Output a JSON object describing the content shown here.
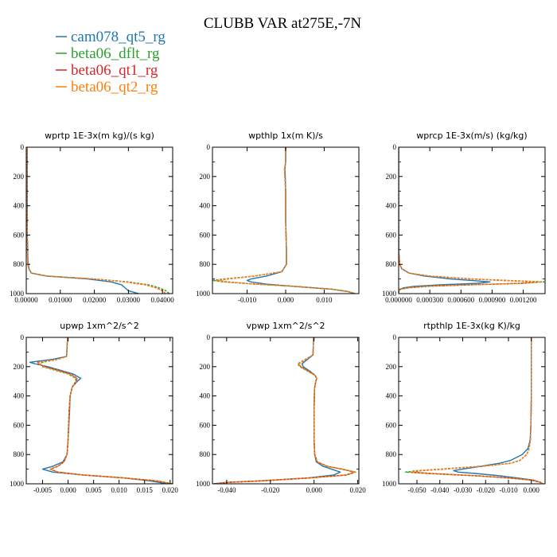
{
  "figure": {
    "title": "CLUBB VAR at275E,-7N",
    "legend": [
      {
        "name": "cam078_qt5_rg",
        "color": "#1f77b4"
      },
      {
        "name": "beta06_dflt_rg",
        "color": "#2ca02c"
      },
      {
        "name": "beta06_qt1_rg",
        "color": "#d62728"
      },
      {
        "name": "beta06_qt2_rg",
        "color": "#ff7f0e"
      }
    ]
  },
  "chart_data": [
    {
      "type": "line",
      "title": "wprtp  1E-3x(m kg)/(s kg)",
      "xlim": [
        0,
        0.043
      ],
      "ylim": [
        1000,
        0
      ],
      "xticks": [
        0,
        0.01,
        0.02,
        0.03,
        0.04
      ],
      "xtick_labels": [
        "0.00000",
        "0.01000",
        "0.02000",
        "0.03000",
        "0.04000"
      ],
      "yticks": [
        0,
        200,
        400,
        600,
        800,
        1000
      ],
      "ytick_labels": [
        "0",
        "200",
        "400",
        "600",
        "800",
        "1000"
      ],
      "y": [
        0,
        200,
        400,
        600,
        780,
        830,
        860,
        880,
        900,
        920,
        940,
        960,
        980,
        1000
      ],
      "series": [
        {
          "name": "cam078_qt5_rg",
          "x": [
            0.0003,
            0.0003,
            0.0003,
            0.0003,
            0.0005,
            0.0008,
            0.0015,
            0.006,
            0.018,
            0.025,
            0.028,
            0.029,
            0.03,
            0.033
          ]
        },
        {
          "name": "beta06_dflt_rg",
          "x": [
            0.0002,
            0.0002,
            0.0002,
            0.0003,
            0.0004,
            0.0007,
            0.0015,
            0.006,
            0.02,
            0.03,
            0.036,
            0.039,
            0.041,
            0.042
          ]
        },
        {
          "name": "beta06_qt1_rg",
          "x": [
            0.0002,
            0.0002,
            0.0002,
            0.0003,
            0.0004,
            0.0007,
            0.0015,
            0.006,
            0.02,
            0.029,
            0.035,
            0.038,
            0.04,
            0.041
          ]
        },
        {
          "name": "beta06_qt2_rg",
          "x": [
            0.0002,
            0.0002,
            0.0002,
            0.0003,
            0.0004,
            0.0007,
            0.0015,
            0.006,
            0.02,
            0.029,
            0.035,
            0.038,
            0.04,
            0.041
          ]
        }
      ]
    },
    {
      "type": "line",
      "title": "wpthlp  1x(m K)/s",
      "xlim": [
        -0.019,
        0.019
      ],
      "ylim": [
        1000,
        0
      ],
      "xticks": [
        -0.01,
        0,
        0.01
      ],
      "xtick_labels": [
        "-0.010",
        "0.000",
        "0.010"
      ],
      "yticks": [
        0,
        200,
        400,
        600,
        800,
        1000
      ],
      "ytick_labels": [
        "0",
        "200",
        "400",
        "600",
        "800",
        "1000"
      ],
      "y": [
        0,
        100,
        150,
        200,
        300,
        500,
        700,
        800,
        850,
        880,
        900,
        910,
        920,
        935,
        950,
        970,
        985,
        1000
      ],
      "series": [
        {
          "name": "cam078_qt5_rg",
          "x": [
            0.0,
            0.0,
            -0.0002,
            -0.0001,
            0.0,
            0.0,
            0.0002,
            0.0002,
            -0.001,
            -0.005,
            -0.009,
            -0.01,
            -0.009,
            -0.005,
            0.002,
            0.012,
            0.016,
            0.018
          ]
        },
        {
          "name": "beta06_dflt_rg",
          "x": [
            0.0,
            0.0,
            -0.0003,
            -0.0002,
            0.0,
            0.0,
            0.0002,
            0.0002,
            -0.001,
            -0.008,
            -0.016,
            -0.019,
            -0.016,
            -0.008,
            0.002,
            0.012,
            0.016,
            0.018
          ]
        },
        {
          "name": "beta06_qt1_rg",
          "x": [
            0.0,
            0.0,
            -0.0003,
            -0.0002,
            0.0,
            0.0,
            0.0002,
            0.0002,
            -0.001,
            -0.008,
            -0.015,
            -0.018,
            -0.015,
            -0.008,
            0.002,
            0.012,
            0.016,
            0.018
          ]
        },
        {
          "name": "beta06_qt2_rg",
          "x": [
            0.0,
            0.0,
            -0.0003,
            -0.0002,
            0.0,
            0.0,
            0.0002,
            0.0002,
            -0.001,
            -0.008,
            -0.015,
            -0.018,
            -0.015,
            -0.008,
            0.002,
            0.012,
            0.016,
            0.018
          ]
        }
      ]
    },
    {
      "type": "line",
      "title": "wprcp  1E-3x(m/s) (kg/kg)",
      "xlim": [
        0,
        0.00141
      ],
      "ylim": [
        1000,
        0
      ],
      "xticks": [
        0,
        0.0003,
        0.0006,
        0.0009,
        0.0012
      ],
      "xtick_labels": [
        "0.000000",
        "0.000300",
        "0.000600",
        "0.000900",
        "0.001200"
      ],
      "yticks": [
        0,
        200,
        400,
        600,
        800,
        1000
      ],
      "ytick_labels": [
        "0",
        "200",
        "400",
        "600",
        "800",
        "1000"
      ],
      "y": [
        0,
        700,
        800,
        830,
        860,
        880,
        900,
        910,
        920,
        930,
        940,
        950,
        960,
        970,
        980,
        1000
      ],
      "series": [
        {
          "name": "cam078_qt5_rg",
          "x": [
            0,
            0,
            1e-05,
            3e-05,
            0.0001,
            0.00025,
            0.0005,
            0.0007,
            0.00088,
            0.00075,
            0.0004,
            0.00015,
            5e-05,
            1e-05,
            0,
            0
          ]
        },
        {
          "name": "beta06_dflt_rg",
          "x": [
            0,
            0,
            1e-05,
            3e-05,
            0.0001,
            0.0003,
            0.0007,
            0.00105,
            0.0014,
            0.0012,
            0.0007,
            0.0003,
            0.0001,
            2e-05,
            0,
            0
          ]
        },
        {
          "name": "beta06_qt1_rg",
          "x": [
            0,
            0,
            1e-05,
            3e-05,
            0.0001,
            0.0003,
            0.0007,
            0.001,
            0.00135,
            0.00115,
            0.00065,
            0.00025,
            8e-05,
            2e-05,
            0,
            0
          ]
        },
        {
          "name": "beta06_qt2_rg",
          "x": [
            0,
            0,
            1e-05,
            3e-05,
            0.0001,
            0.0003,
            0.0007,
            0.00102,
            0.00137,
            0.00117,
            0.00067,
            0.00027,
            9e-05,
            2e-05,
            0,
            0
          ]
        }
      ]
    },
    {
      "type": "line",
      "title": "upwp   1xm^2/s^2",
      "xlim": [
        -0.0082,
        0.0205
      ],
      "ylim": [
        1000,
        0
      ],
      "xticks": [
        -0.005,
        0,
        0.005,
        0.01,
        0.015,
        0.02
      ],
      "xtick_labels": [
        "-0.005",
        "0.000",
        "0.005",
        "0.010",
        "0.015",
        "0.020"
      ],
      "yticks": [
        0,
        200,
        400,
        600,
        800,
        1000
      ],
      "ytick_labels": [
        "0",
        "200",
        "400",
        "600",
        "800",
        "1000"
      ],
      "y": [
        0,
        130,
        150,
        170,
        180,
        200,
        220,
        250,
        280,
        300,
        340,
        400,
        500,
        700,
        800,
        850,
        880,
        900,
        920,
        940,
        960,
        980,
        1000
      ],
      "series": [
        {
          "name": "cam078_qt5_rg",
          "x": [
            -0.0001,
            -0.0003,
            -0.003,
            -0.0075,
            -0.0065,
            -0.004,
            -0.002,
            0.001,
            0.0025,
            0.0018,
            0.0008,
            0.0004,
            0.0003,
            0.0,
            -0.0002,
            -0.001,
            -0.003,
            -0.005,
            -0.003,
            0.003,
            0.011,
            0.016,
            0.0195
          ]
        },
        {
          "name": "beta06_dflt_rg",
          "x": [
            -0.0001,
            -0.0003,
            -0.002,
            -0.005,
            -0.0055,
            -0.005,
            -0.003,
            0.0,
            0.0015,
            0.0015,
            0.0008,
            0.0004,
            0.0002,
            0.0,
            -0.0002,
            -0.0008,
            -0.002,
            -0.0035,
            -0.002,
            0.003,
            0.011,
            0.0175,
            0.0205
          ]
        },
        {
          "name": "beta06_qt1_rg",
          "x": [
            -0.0001,
            -0.0003,
            -0.0022,
            -0.006,
            -0.006,
            -0.0045,
            -0.0025,
            0.0005,
            0.0018,
            0.0016,
            0.0008,
            0.0004,
            0.0002,
            0.0,
            -0.0002,
            -0.0008,
            -0.002,
            -0.0035,
            -0.002,
            0.003,
            0.011,
            0.0172,
            0.0202
          ]
        },
        {
          "name": "beta06_qt2_rg",
          "x": [
            -0.0001,
            -0.0003,
            -0.0021,
            -0.0058,
            -0.0058,
            -0.0047,
            -0.0027,
            0.0003,
            0.0017,
            0.0016,
            0.0008,
            0.0004,
            0.0002,
            0.0,
            -0.0002,
            -0.0008,
            -0.002,
            -0.0035,
            -0.002,
            0.003,
            0.011,
            0.0173,
            0.0203
          ]
        }
      ]
    },
    {
      "type": "line",
      "title": "vpwp   1xm^2/s^2",
      "xlim": [
        -0.0465,
        0.0205
      ],
      "ylim": [
        1000,
        0
      ],
      "xticks": [
        -0.04,
        -0.02,
        0,
        0.02
      ],
      "xtick_labels": [
        "-0.040",
        "-0.020",
        "0.000",
        "0.020"
      ],
      "yticks": [
        0,
        200,
        400,
        600,
        800,
        1000
      ],
      "ytick_labels": [
        "0",
        "200",
        "400",
        "600",
        "800",
        "1000"
      ],
      "y": [
        0,
        120,
        150,
        180,
        200,
        230,
        260,
        280,
        300,
        350,
        500,
        700,
        800,
        850,
        880,
        900,
        920,
        940,
        960,
        980,
        990,
        1000
      ],
      "series": [
        {
          "name": "cam078_qt5_rg",
          "x": [
            -0.0002,
            -0.0005,
            -0.003,
            -0.0055,
            -0.005,
            -0.002,
            0.0005,
            0.0012,
            0.0008,
            0.0002,
            0.0,
            0.0,
            0.0003,
            0.001,
            0.004,
            0.008,
            0.012,
            0.009,
            -0.003,
            -0.025,
            -0.04,
            -0.046
          ]
        },
        {
          "name": "beta06_dflt_rg",
          "x": [
            -0.0002,
            -0.0005,
            -0.004,
            -0.0075,
            -0.0065,
            -0.003,
            0.0005,
            0.0012,
            0.0008,
            0.0002,
            0.0,
            0.0,
            0.0003,
            0.0015,
            0.006,
            0.013,
            0.019,
            0.015,
            -0.002,
            -0.024,
            -0.039,
            -0.045
          ]
        },
        {
          "name": "beta06_qt1_rg",
          "x": [
            -0.0002,
            -0.0005,
            -0.0035,
            -0.007,
            -0.006,
            -0.0025,
            0.0005,
            0.0012,
            0.0008,
            0.0002,
            0.0,
            0.0,
            0.0003,
            0.0014,
            0.0058,
            0.0125,
            0.0185,
            0.0145,
            -0.002,
            -0.024,
            -0.039,
            -0.045
          ]
        },
        {
          "name": "beta06_qt2_rg",
          "x": [
            -0.0002,
            -0.0005,
            -0.0037,
            -0.0072,
            -0.0062,
            -0.0027,
            0.0005,
            0.0012,
            0.0008,
            0.0002,
            0.0,
            0.0,
            0.0003,
            0.0014,
            0.0059,
            0.0128,
            0.0188,
            0.0148,
            -0.002,
            -0.024,
            -0.039,
            -0.045
          ]
        }
      ]
    },
    {
      "type": "line",
      "title": "rtpthlp  1E-3x(kg K)/kg",
      "xlim": [
        -0.058,
        0.006
      ],
      "ylim": [
        1000,
        0
      ],
      "xticks": [
        -0.05,
        -0.04,
        -0.03,
        -0.02,
        -0.01,
        0
      ],
      "xtick_labels": [
        "-0.050",
        "-0.040",
        "-0.030",
        "-0.020",
        "-0.010",
        "0.000"
      ],
      "yticks": [
        0,
        200,
        400,
        600,
        800,
        1000
      ],
      "ytick_labels": [
        "0",
        "200",
        "400",
        "600",
        "800",
        "1000"
      ],
      "y": [
        0,
        400,
        600,
        700,
        760,
        800,
        840,
        860,
        880,
        900,
        910,
        920,
        930,
        945,
        960,
        975,
        990,
        1000
      ],
      "series": [
        {
          "name": "cam078_qt5_rg",
          "x": [
            0,
            0,
            -0.0002,
            -0.0005,
            -0.0015,
            -0.004,
            -0.009,
            -0.014,
            -0.022,
            -0.03,
            -0.034,
            -0.032,
            -0.024,
            -0.014,
            -0.006,
            0.001,
            0.004,
            0.005
          ]
        },
        {
          "name": "beta06_dflt_rg",
          "x": [
            0,
            0,
            -0.0002,
            -0.0004,
            -0.001,
            -0.002,
            -0.005,
            -0.009,
            -0.022,
            -0.04,
            -0.05,
            -0.055,
            -0.045,
            -0.025,
            -0.01,
            0.0,
            0.004,
            0.005
          ]
        },
        {
          "name": "beta06_qt1_rg",
          "x": [
            0,
            0,
            -0.0002,
            -0.0004,
            -0.001,
            -0.002,
            -0.005,
            -0.009,
            -0.021,
            -0.038,
            -0.048,
            -0.052,
            -0.043,
            -0.024,
            -0.01,
            0.0,
            0.004,
            0.005
          ]
        },
        {
          "name": "beta06_qt2_rg",
          "x": [
            0,
            0,
            -0.0002,
            -0.0004,
            -0.001,
            -0.002,
            -0.005,
            -0.009,
            -0.021,
            -0.039,
            -0.049,
            -0.053,
            -0.044,
            -0.024,
            -0.01,
            0.0,
            0.004,
            0.005
          ]
        }
      ]
    }
  ]
}
